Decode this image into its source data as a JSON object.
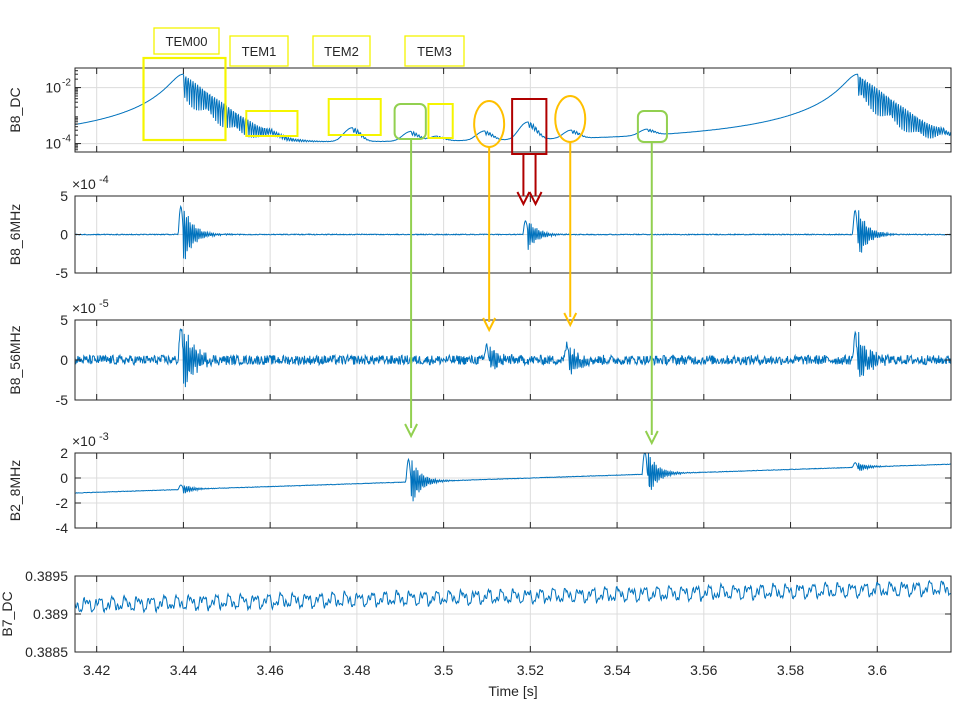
{
  "chart_data": {
    "type": "line",
    "xlabel": "Time [s]",
    "xlim": [
      3.415,
      3.617
    ],
    "xticks": [
      3.42,
      3.44,
      3.46,
      3.48,
      3.5,
      3.52,
      3.54,
      3.56,
      3.58,
      3.6
    ],
    "xtick_labels": [
      "3.42",
      "3.44",
      "3.46",
      "3.48",
      "3.5",
      "3.52",
      "3.54",
      "3.56",
      "3.58",
      "3.6"
    ],
    "grid": true,
    "line_color": "#0072BD",
    "panels": [
      {
        "ylabel": "B8_DC",
        "yscale": "log",
        "ylim": [
          5e-05,
          0.05
        ],
        "yticks": [
          0.0001,
          0.01
        ],
        "ytick_labels": [
          "10^-4",
          "10^-2"
        ],
        "exponent_label": "",
        "baseline": 0.0001,
        "noise": 0.03,
        "events": [
          {
            "x": 3.44,
            "amp": 0.03,
            "kind": "resonance"
          },
          {
            "x": 3.4605,
            "amp": 8e-05,
            "kind": "bump"
          },
          {
            "x": 3.479,
            "amp": 0.00025,
            "kind": "bump"
          },
          {
            "x": 3.4925,
            "amp": 0.00015,
            "kind": "bump"
          },
          {
            "x": 3.4985,
            "amp": 6e-05,
            "kind": "bump"
          },
          {
            "x": 3.5095,
            "amp": 0.00015,
            "kind": "bump"
          },
          {
            "x": 3.5195,
            "amp": 0.00045,
            "kind": "bump"
          },
          {
            "x": 3.5295,
            "amp": 0.00015,
            "kind": "bump"
          },
          {
            "x": 3.547,
            "amp": 0.00013,
            "kind": "bump"
          },
          {
            "x": 3.5955,
            "amp": 0.03,
            "kind": "resonance"
          },
          {
            "x": 3.6155,
            "amp": 0.0001,
            "kind": "bump"
          }
        ]
      },
      {
        "ylabel": "B8_6MHz",
        "yscale": "linear",
        "ylim": [
          -5,
          5
        ],
        "yticks": [
          -5,
          0,
          5
        ],
        "ytick_labels": [
          "-5",
          "0",
          "5"
        ],
        "exponent_label": "×10",
        "exponent_power": "-4",
        "noise": 0.06,
        "events": [
          {
            "x": 3.44,
            "amp": 4.0,
            "kind": "ring"
          },
          {
            "x": 3.5195,
            "amp": 2.0,
            "kind": "ring"
          },
          {
            "x": 3.5955,
            "amp": 3.5,
            "kind": "ring"
          }
        ]
      },
      {
        "ylabel": "B8_56MHz",
        "yscale": "linear",
        "ylim": [
          -5,
          5
        ],
        "yticks": [
          -5,
          0,
          5
        ],
        "ytick_labels": [
          "-5",
          "0",
          "5"
        ],
        "exponent_label": "×10",
        "exponent_power": "-5",
        "noise": 0.6,
        "events": [
          {
            "x": 3.44,
            "amp": 4.5,
            "kind": "ring"
          },
          {
            "x": 3.5105,
            "amp": 2.0,
            "kind": "ring"
          },
          {
            "x": 3.529,
            "amp": 2.0,
            "kind": "ring"
          },
          {
            "x": 3.5955,
            "amp": 3.5,
            "kind": "ring"
          }
        ]
      },
      {
        "ylabel": "B2_8MHz",
        "yscale": "linear",
        "ylim": [
          -4,
          2
        ],
        "yticks": [
          -4,
          -2,
          0,
          2
        ],
        "ytick_labels": [
          "-4",
          "-2",
          "0",
          "2"
        ],
        "exponent_label": "×10",
        "exponent_power": "-3",
        "noise": 0.02,
        "drift": [
          [
            3.415,
            -1.2
          ],
          [
            3.6165,
            1.1
          ]
        ],
        "events": [
          {
            "x": 3.44,
            "amp": 0.4,
            "kind": "ring"
          },
          {
            "x": 3.4925,
            "amp": 2.0,
            "kind": "ring"
          },
          {
            "x": 3.547,
            "amp": 2.0,
            "kind": "ring"
          },
          {
            "x": 3.5955,
            "amp": 0.4,
            "kind": "ring"
          }
        ]
      },
      {
        "ylabel": "B7_DC",
        "yscale": "linear",
        "ylim": [
          0.3885,
          0.3895
        ],
        "yticks": [
          0.3885,
          0.389,
          0.3895
        ],
        "ytick_labels": [
          "0.3885",
          "0.389",
          "0.3895"
        ],
        "exponent_label": "",
        "wander": {
          "mean_start": 0.38912,
          "mean_end": 0.38934,
          "amp": 0.00012
        }
      }
    ],
    "annotations": {
      "mode_labels": [
        "TEM00",
        "TEM1",
        "TEM2",
        "TEM3"
      ],
      "colors": {
        "yellow": "#F5F500",
        "green": "#92D050",
        "orange": "#FFC000",
        "red": "#B00000"
      }
    }
  }
}
